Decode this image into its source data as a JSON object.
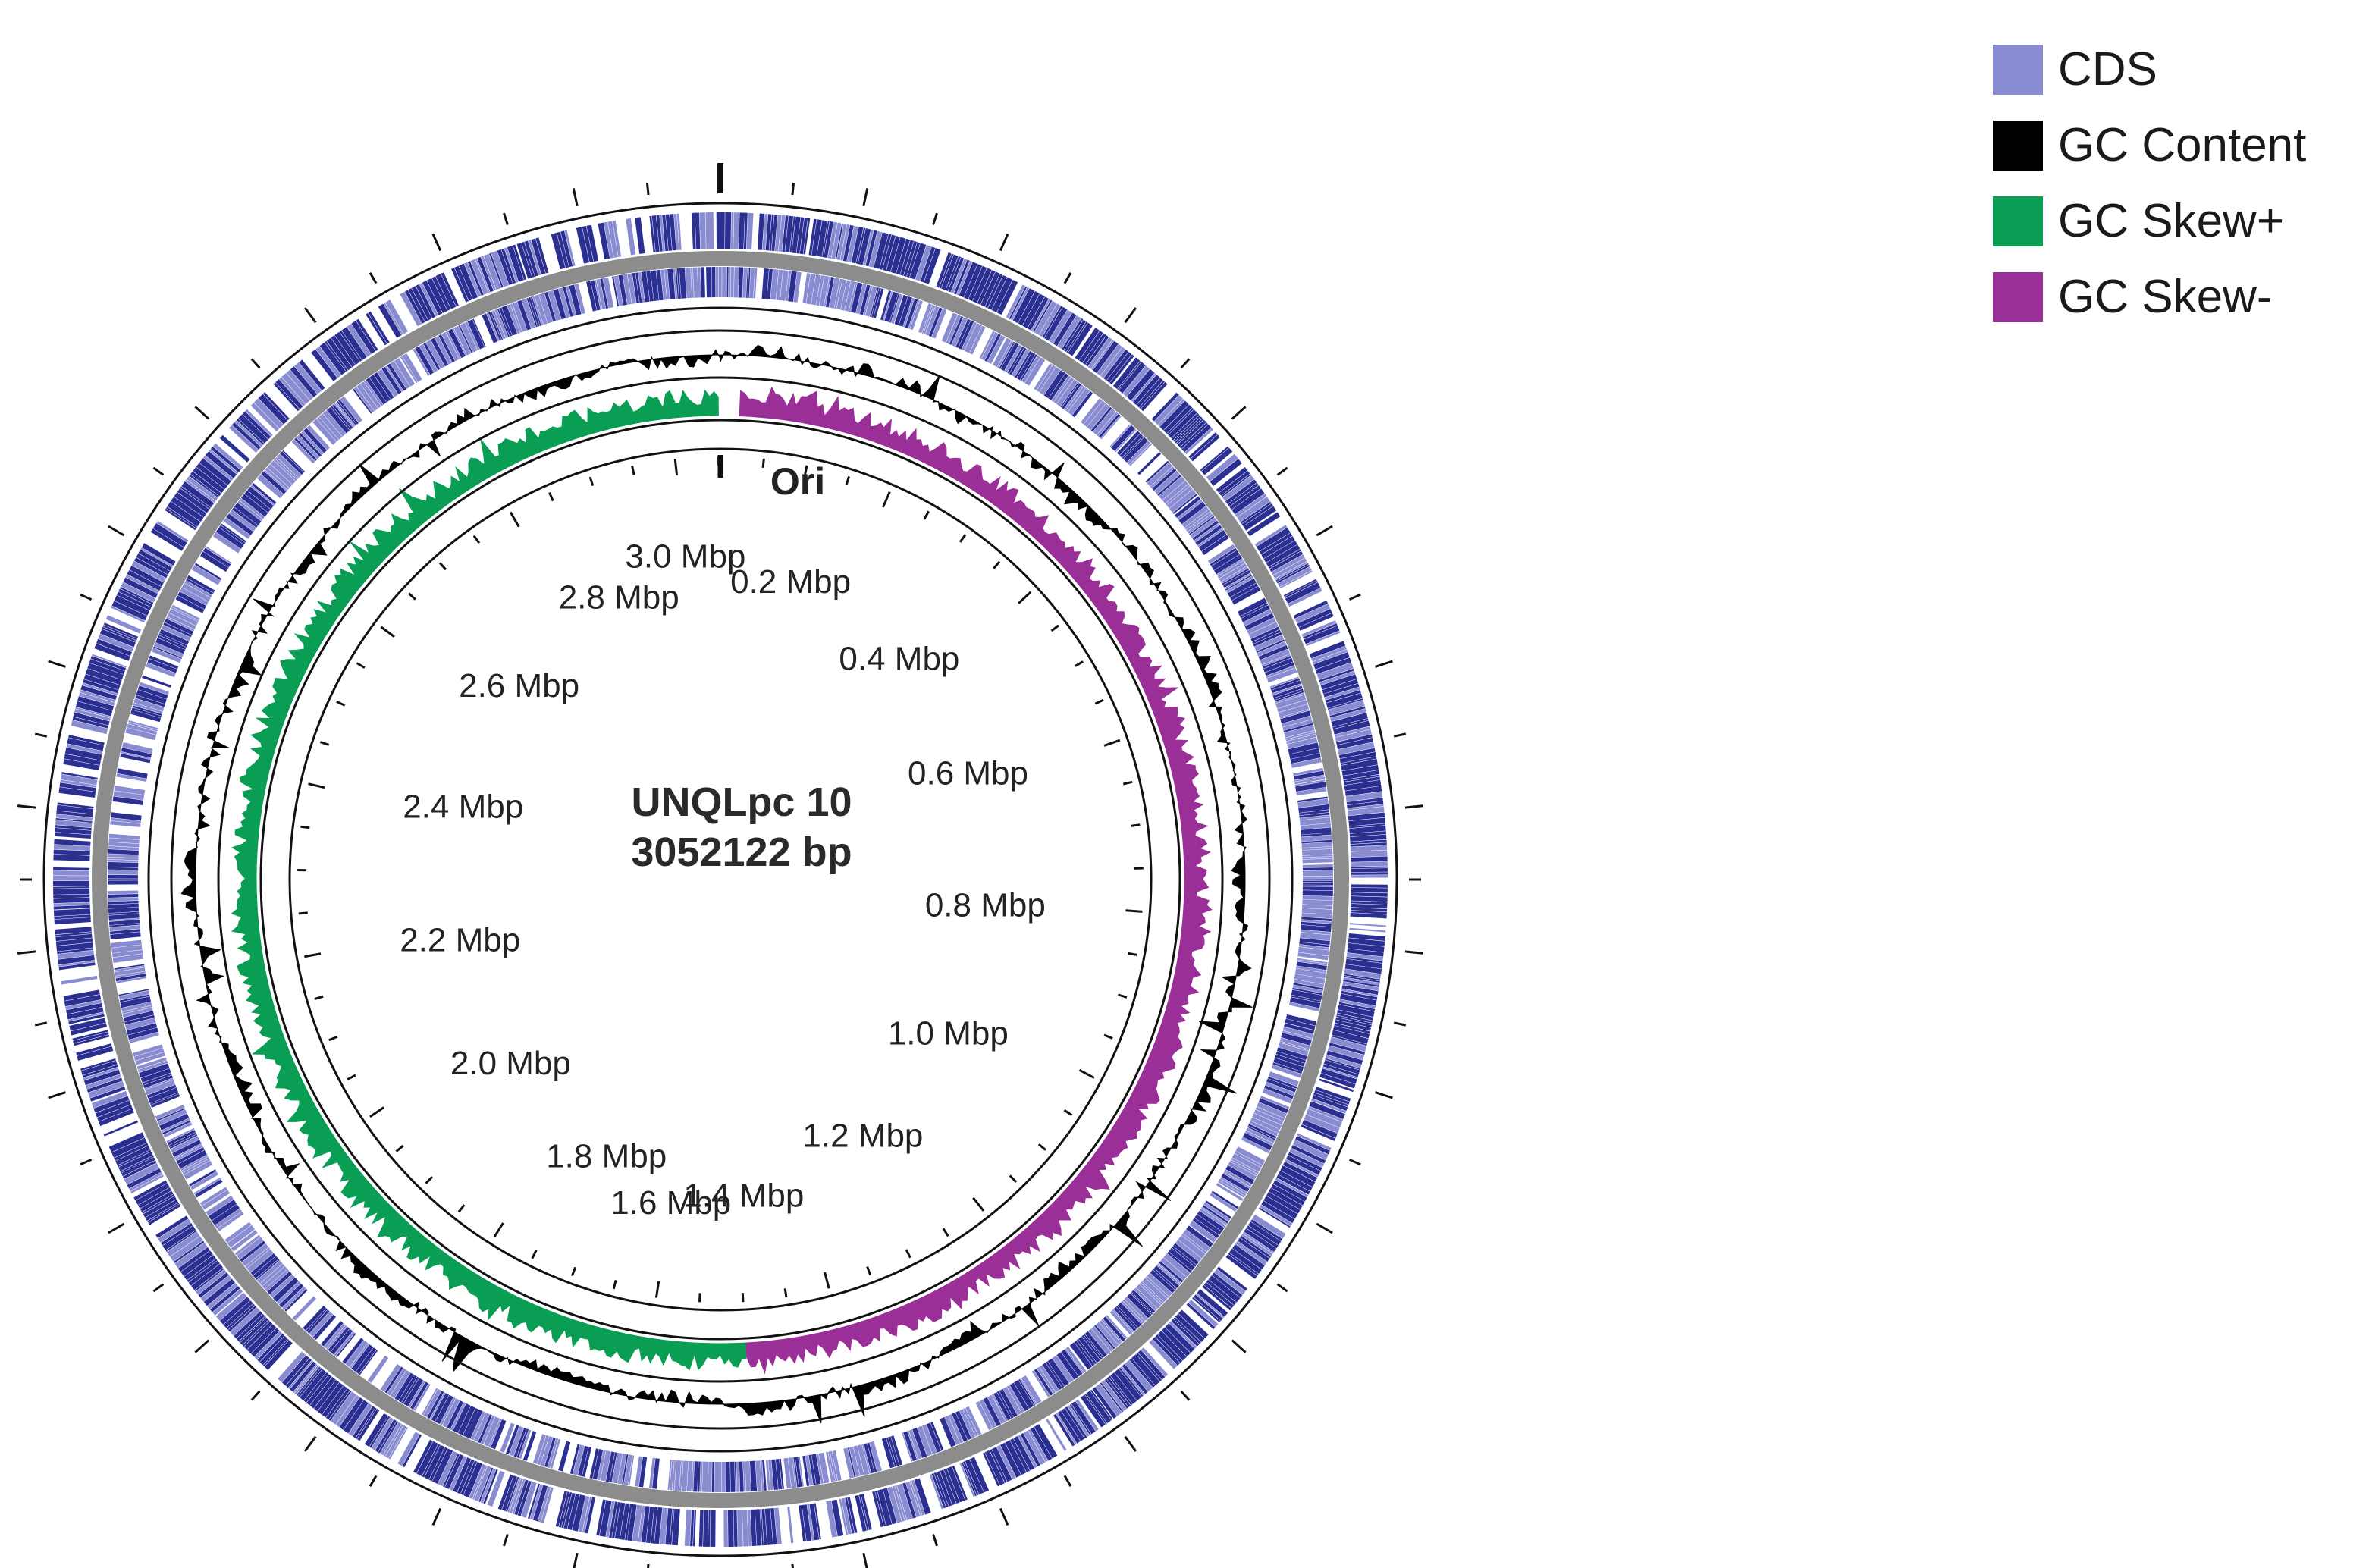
{
  "chart_data": {
    "type": "circular-genome-map",
    "genome": {
      "name": "UNQLpc 10",
      "length_label": "3052122 bp",
      "length_bp": 3052122
    },
    "origin_label": "Ori",
    "ticks": [
      {
        "label": "0.2 Mbp",
        "position_mbp": 0.2
      },
      {
        "label": "0.4 Mbp",
        "position_mbp": 0.4
      },
      {
        "label": "0.6 Mbp",
        "position_mbp": 0.6
      },
      {
        "label": "0.8 Mbp",
        "position_mbp": 0.8
      },
      {
        "label": "1.0 Mbp",
        "position_mbp": 1.0
      },
      {
        "label": "1.2 Mbp",
        "position_mbp": 1.2
      },
      {
        "label": "1.4 Mbp",
        "position_mbp": 1.4
      },
      {
        "label": "1.6 Mbp",
        "position_mbp": 1.6
      },
      {
        "label": "1.8 Mbp",
        "position_mbp": 1.8
      },
      {
        "label": "2.0 Mbp",
        "position_mbp": 2.0
      },
      {
        "label": "2.2 Mbp",
        "position_mbp": 2.2
      },
      {
        "label": "2.4 Mbp",
        "position_mbp": 2.4
      },
      {
        "label": "2.6 Mbp",
        "position_mbp": 2.6
      },
      {
        "label": "2.8 Mbp",
        "position_mbp": 2.8
      },
      {
        "label": "3.0 Mbp",
        "position_mbp": 3.0
      }
    ],
    "gc_skew": {
      "positive_range_mbp": [
        1.5,
        3.05
      ],
      "negative_range_mbp": [
        0.02,
        1.5
      ]
    },
    "colors": {
      "cds": "#8a8cd2",
      "cds_dense": "#2b2f92",
      "gc_content": "#000000",
      "gc_skew_plus": "#0a9e55",
      "gc_skew_minus": "#9b2f98",
      "backbone": "#8c8c8c"
    }
  },
  "legend": {
    "items": [
      {
        "label": "CDS",
        "color": "#8a8cd2"
      },
      {
        "label": "GC Content",
        "color": "#000000"
      },
      {
        "label": "GC Skew+",
        "color": "#0a9e55"
      },
      {
        "label": "GC Skew-",
        "color": "#9b2f98"
      }
    ]
  }
}
